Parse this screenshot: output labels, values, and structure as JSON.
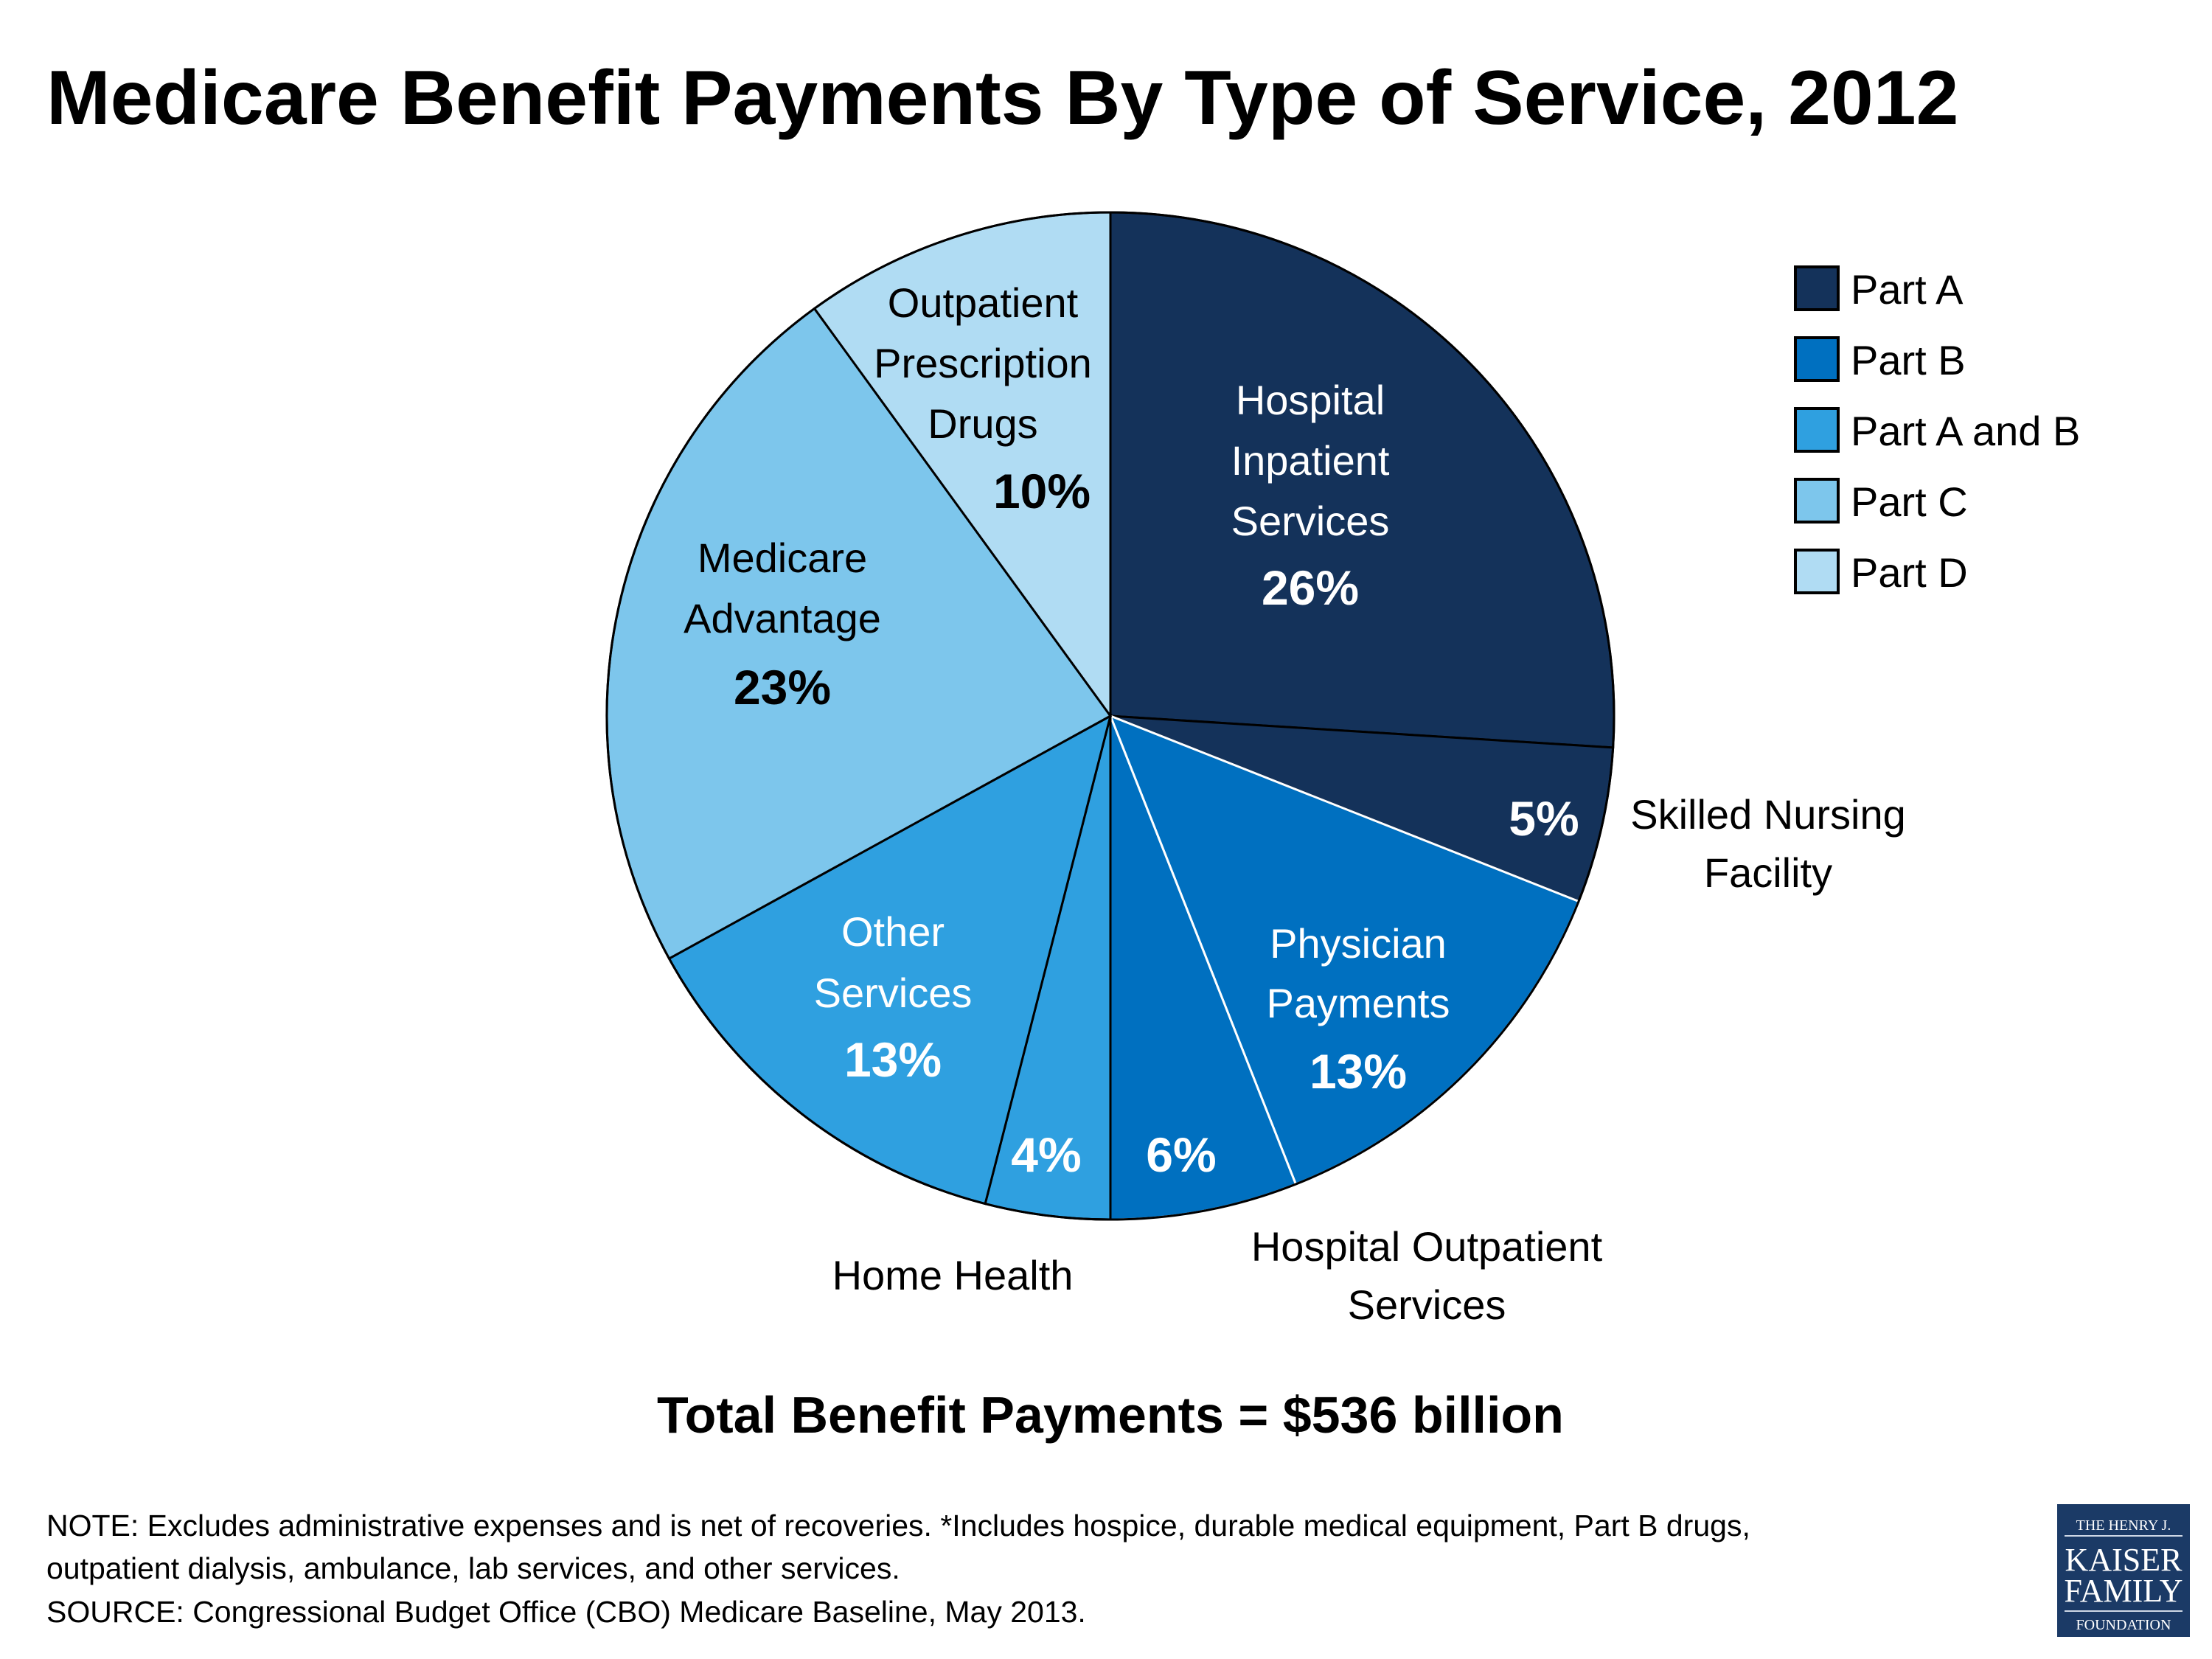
{
  "chart_data": {
    "type": "pie",
    "title": "Medicare Benefit Payments By Type of Service, 2012",
    "subtitle": "Total Benefit Payments = $536 billion",
    "legend_position": "top-right",
    "legend": [
      {
        "label": "Part A",
        "color": "#14325a"
      },
      {
        "label": "Part B",
        "color": "#0070c0"
      },
      {
        "label": "Part A and B",
        "color": "#2fa0e0"
      },
      {
        "label": "Part C",
        "color": "#7dc6ec"
      },
      {
        "label": "Part D",
        "color": "#b0dcf3"
      }
    ],
    "slices": [
      {
        "label_lines": [
          "Hospital",
          "Inpatient",
          "Services"
        ],
        "value": 26,
        "value_label": "26%",
        "part": "Part A",
        "color": "#14325a"
      },
      {
        "label_lines": [
          "Skilled Nursing",
          "Facility"
        ],
        "value": 5,
        "value_label": "5%",
        "part": "Part A",
        "color": "#14325a"
      },
      {
        "label_lines": [
          "Physician",
          "Payments"
        ],
        "value": 13,
        "value_label": "13%",
        "part": "Part B",
        "color": "#0070c0"
      },
      {
        "label_lines": [
          "Hospital Outpatient",
          "Services"
        ],
        "value": 6,
        "value_label": "6%",
        "part": "Part B",
        "color": "#0070c0"
      },
      {
        "label_lines": [
          "Home Health"
        ],
        "value": 4,
        "value_label": "4%",
        "part": "Part A and B",
        "color": "#2fa0e0"
      },
      {
        "label_lines": [
          "Other",
          "Services"
        ],
        "value": 13,
        "value_label": "13%",
        "part": "Part A and B",
        "color": "#2fa0e0"
      },
      {
        "label_lines": [
          "Medicare",
          "Advantage"
        ],
        "value": 23,
        "value_label": "23%",
        "part": "Part C",
        "color": "#7dc6ec"
      },
      {
        "label_lines": [
          "Outpatient",
          "Prescription",
          "Drugs"
        ],
        "value": 10,
        "value_label": "10%",
        "part": "Part D",
        "color": "#b0dcf3"
      }
    ]
  },
  "notes": [
    "NOTE:  Excludes administrative expenses and is net of recoveries. *Includes hospice, durable medical equipment, Part B drugs,",
    "outpatient dialysis, ambulance, lab services, and other services.",
    "SOURCE: Congressional Budget Office (CBO) Medicare Baseline, May 2013."
  ],
  "logo": {
    "lines": [
      "THE HENRY J.",
      "KAISER",
      "FAMILY",
      "FOUNDATION"
    ],
    "color": "#1b3a66"
  }
}
